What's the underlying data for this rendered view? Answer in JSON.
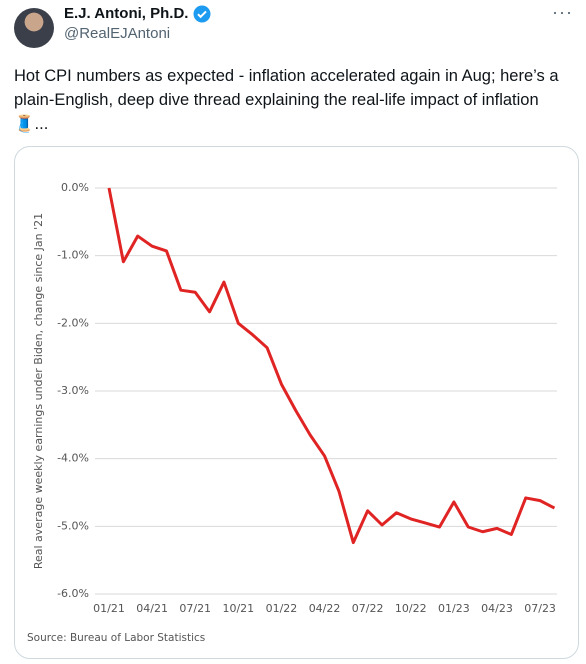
{
  "tweet": {
    "name": "E.J. Antoni, Ph.D.",
    "handle": "@RealEJAntoni",
    "more": "···",
    "text": "Hot CPI numbers as expected - inflation accelerated again in Aug; here’s a plain-English, deep dive thread explaining the real-life impact of inflation 🧵..."
  },
  "chart_data": {
    "type": "line",
    "ylabel": "Real average weekly earnings under Biden, change since Jan '21",
    "source": "Source: Bureau of Labor Statistics",
    "categories": [
      "01/21",
      null,
      null,
      "04/21",
      null,
      null,
      "07/21",
      null,
      null,
      "10/21",
      null,
      null,
      "01/22",
      null,
      null,
      "04/22",
      null,
      null,
      "07/22",
      null,
      null,
      "10/22",
      null,
      null,
      "01/23",
      null,
      null,
      "04/23",
      null,
      null,
      "07/23",
      null
    ],
    "values": [
      0,
      -1.09,
      -0.71,
      -0.86,
      -0.93,
      -1.51,
      -1.54,
      -1.83,
      -1.39,
      -2.0,
      -2.17,
      -2.36,
      -2.9,
      -3.29,
      -3.65,
      -3.96,
      -4.48,
      -5.24,
      -4.77,
      -4.98,
      -4.8,
      -4.89,
      -4.95,
      -5.01,
      -4.64,
      -5.01,
      -5.08,
      -5.03,
      -5.12,
      -4.58,
      -4.62,
      -4.73
    ],
    "color": "#e02424",
    "ylim": [
      -6,
      0
    ],
    "yticks": [
      {
        "value": 0,
        "label": "0.0%"
      },
      {
        "value": -1,
        "label": "-1.0%"
      },
      {
        "value": -2,
        "label": "-2.0%"
      },
      {
        "value": -3,
        "label": "-3.0%"
      },
      {
        "value": -4,
        "label": "-4.0%"
      },
      {
        "value": -5,
        "label": "-5.0%"
      },
      {
        "value": -6,
        "label": "-6.0%"
      }
    ],
    "grid": true
  }
}
